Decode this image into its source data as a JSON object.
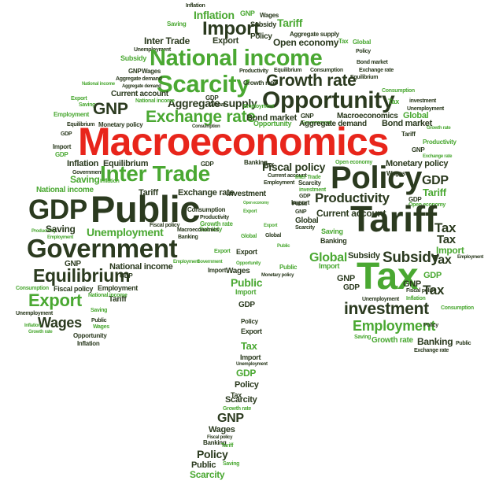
{
  "colors": {
    "dark_green": "#2b3a1f",
    "green": "#4aa832",
    "light_green": "#7bc043",
    "red": "#e8251b",
    "background": "#ffffff"
  },
  "words": {
    "macroeconomics": "Macroeconomics",
    "public": "Public",
    "policy": "Policy",
    "tariff": "Tariff",
    "tax": "Tax",
    "government": "Government",
    "national_income": "National income",
    "scarcity": "Scarcity",
    "opportunity": "Opportunity",
    "inter_trade": "Inter Trade",
    "exchange_rate": "Exchange rate",
    "gdp": "GDP",
    "gnp": "GNP",
    "import": "Import",
    "export": "Export",
    "inflation": "Inflation",
    "growth_rate": "Growth rate",
    "investment": "investment",
    "equilibrium": "Equilibrium",
    "wages": "Wages",
    "employment": "Employment",
    "unemployment": "Unemployment",
    "productivity": "Productivity",
    "subsidy": "Subsidy",
    "saving": "Saving",
    "global": "Global",
    "fiscal_policy": "Fiscal policy",
    "monetary_policy": "Monetary policy",
    "bond_market": "Bond market",
    "current_account": "Current account",
    "consumption": "Consumption",
    "aggregate_supply": "Aggregate supply",
    "aggregate_demand": "Aggregate demand",
    "open_economy": "Open economy",
    "banking": "Banking"
  }
}
